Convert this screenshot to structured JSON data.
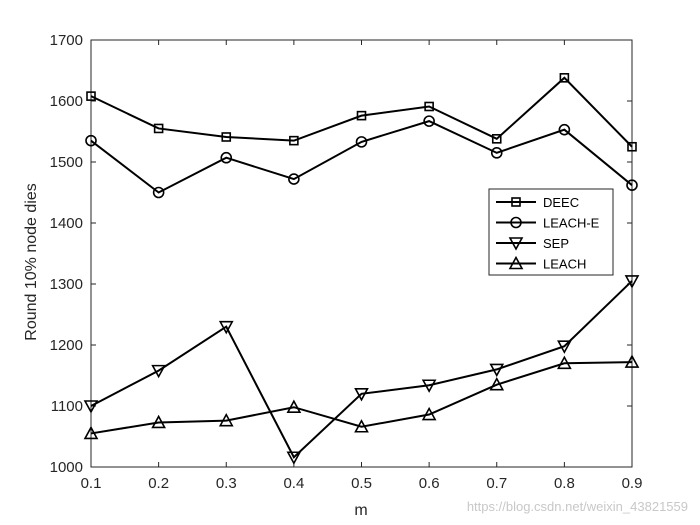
{
  "chart_data": {
    "type": "line",
    "title": "",
    "xlabel": "m",
    "ylabel": "Round 10% node dies",
    "x": [
      0.1,
      0.2,
      0.3,
      0.4,
      0.5,
      0.6,
      0.7,
      0.8,
      0.9
    ],
    "x_tick_labels": [
      "0.1",
      "0.2",
      "0.3",
      "0.4",
      "0.5",
      "0.6",
      "0.7",
      "0.8",
      "0.9"
    ],
    "xlim": [
      0.1,
      0.9
    ],
    "ylim": [
      1000,
      1700
    ],
    "y_ticks": [
      1000,
      1100,
      1200,
      1300,
      1400,
      1500,
      1600,
      1700
    ],
    "grid": false,
    "legend_position": "right",
    "series": [
      {
        "name": "DEEC",
        "marker": "square",
        "values": [
          1608,
          1555,
          1541,
          1535,
          1576,
          1591,
          1538,
          1638,
          1525
        ]
      },
      {
        "name": "LEACH-E",
        "marker": "circle",
        "values": [
          1535,
          1450,
          1507,
          1472,
          1533,
          1567,
          1515,
          1553,
          1462
        ]
      },
      {
        "name": "SEP",
        "marker": "triangle-down",
        "values": [
          1100,
          1158,
          1230,
          1016,
          1120,
          1134,
          1160,
          1198,
          1305
        ]
      },
      {
        "name": "LEACH",
        "marker": "triangle-up",
        "values": [
          1055,
          1073,
          1076,
          1098,
          1066,
          1086,
          1135,
          1170,
          1172
        ]
      }
    ],
    "line_color": "#000000"
  },
  "watermark": "https://blog.csdn.net/weixin_43821559"
}
